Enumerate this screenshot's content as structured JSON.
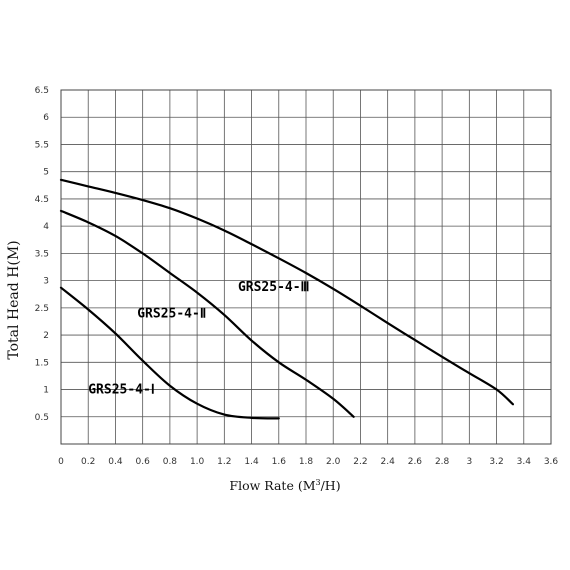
{
  "chart_data": {
    "type": "line",
    "xlabel_main": "Flow Rate (M",
    "xlabel_sup": "3",
    "xlabel_tail": "/H)",
    "ylabel": "Total Head H(M)",
    "xlim": [
      0,
      3.6
    ],
    "ylim": [
      0,
      6.5
    ],
    "xticks": [
      "0",
      "0.2",
      "0.4",
      "0.6",
      "0.8",
      "1.0",
      "1.2",
      "1.4",
      "1.6",
      "1.8",
      "2.0",
      "2.2",
      "2.4",
      "2.6",
      "2.8",
      "3",
      "3.2",
      "3.4",
      "3.6"
    ],
    "xtick_values": [
      0,
      0.2,
      0.4,
      0.6,
      0.8,
      1.0,
      1.2,
      1.4,
      1.6,
      1.8,
      2.0,
      2.2,
      2.4,
      2.6,
      2.8,
      3.0,
      3.2,
      3.4,
      3.6
    ],
    "yticks": [
      "0.5",
      "1",
      "1.5",
      "2",
      "2.5",
      "3",
      "3.5",
      "4",
      "4.5",
      "5",
      "5.5",
      "6",
      "6.5"
    ],
    "ytick_values": [
      0.5,
      1,
      1.5,
      2,
      2.5,
      3,
      3.5,
      4,
      4.5,
      5,
      5.5,
      6,
      6.5
    ],
    "grid": true,
    "series": [
      {
        "name": "GRS25-4-Ⅰ",
        "label_at": [
          0.2,
          1.0
        ],
        "x": [
          0,
          0.2,
          0.4,
          0.6,
          0.8,
          1.0,
          1.2,
          1.4,
          1.6
        ],
        "y": [
          2.87,
          2.47,
          2.03,
          1.53,
          1.07,
          0.74,
          0.54,
          0.48,
          0.47
        ]
      },
      {
        "name": "GRS25-4-Ⅱ",
        "label_at": [
          0.56,
          2.4
        ],
        "x": [
          0,
          0.2,
          0.4,
          0.6,
          0.8,
          1.0,
          1.2,
          1.4,
          1.6,
          1.8,
          2.0,
          2.15
        ],
        "y": [
          4.28,
          4.07,
          3.82,
          3.5,
          3.14,
          2.78,
          2.37,
          1.9,
          1.5,
          1.18,
          0.83,
          0.5
        ]
      },
      {
        "name": "GRS25-4-Ⅲ",
        "label_at": [
          1.3,
          2.88
        ],
        "x": [
          0,
          0.2,
          0.4,
          0.6,
          0.8,
          1.0,
          1.2,
          1.4,
          1.6,
          1.8,
          2.0,
          2.2,
          2.4,
          2.6,
          2.8,
          3.0,
          3.2,
          3.32
        ],
        "y": [
          4.85,
          4.73,
          4.61,
          4.48,
          4.33,
          4.14,
          3.92,
          3.67,
          3.41,
          3.14,
          2.85,
          2.54,
          2.22,
          1.91,
          1.6,
          1.3,
          1.0,
          0.73
        ]
      }
    ]
  }
}
